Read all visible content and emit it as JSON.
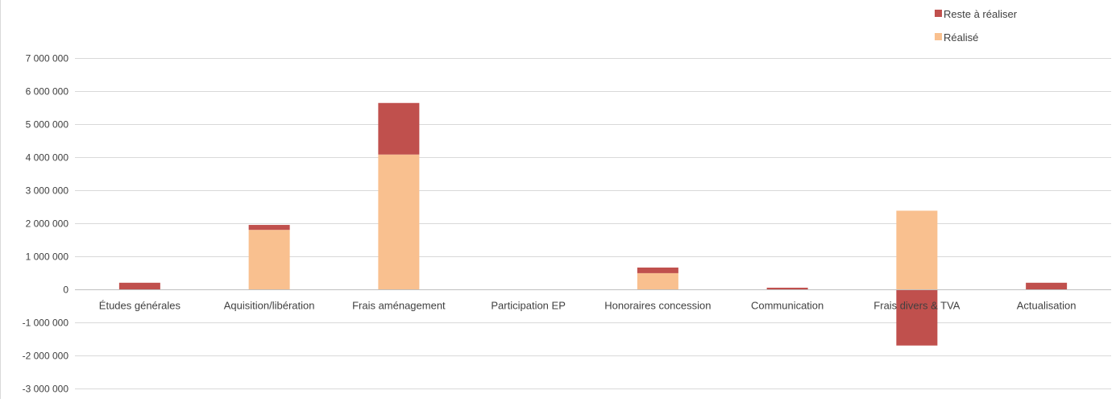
{
  "chart_data": {
    "type": "bar",
    "stacked": true,
    "categories": [
      "Études générales",
      "Aquisition/libération",
      "Frais aménagement",
      "Participation EP",
      "Honoraires concession",
      "Communication",
      "Frais divers & TVA",
      "Actualisation"
    ],
    "series": [
      {
        "name": "Réalisé",
        "color": "#F9C08F",
        "values": [
          0,
          1800000,
          4080000,
          0,
          490000,
          0,
          2380000,
          0
        ]
      },
      {
        "name": "Reste à réaliser",
        "color": "#C0504D",
        "values": [
          200000,
          150000,
          1560000,
          0,
          170000,
          50000,
          -1700000,
          200000
        ]
      }
    ],
    "ylim": [
      -3000000,
      7000000
    ],
    "yticks": [
      7000000,
      6000000,
      5000000,
      4000000,
      3000000,
      2000000,
      1000000,
      0,
      -1000000,
      -2000000,
      -3000000
    ],
    "ytick_labels": [
      "7 000 000",
      "6 000 000",
      "5 000 000",
      "4 000 000",
      "3 000 000",
      "2 000 000",
      "1 000 000",
      "0",
      "-1 000 000",
      "-2 000 000",
      "-3 000 000"
    ],
    "legend_position": "top-right",
    "legend_order": [
      "Reste à réaliser",
      "Réalisé"
    ],
    "grid": true
  }
}
